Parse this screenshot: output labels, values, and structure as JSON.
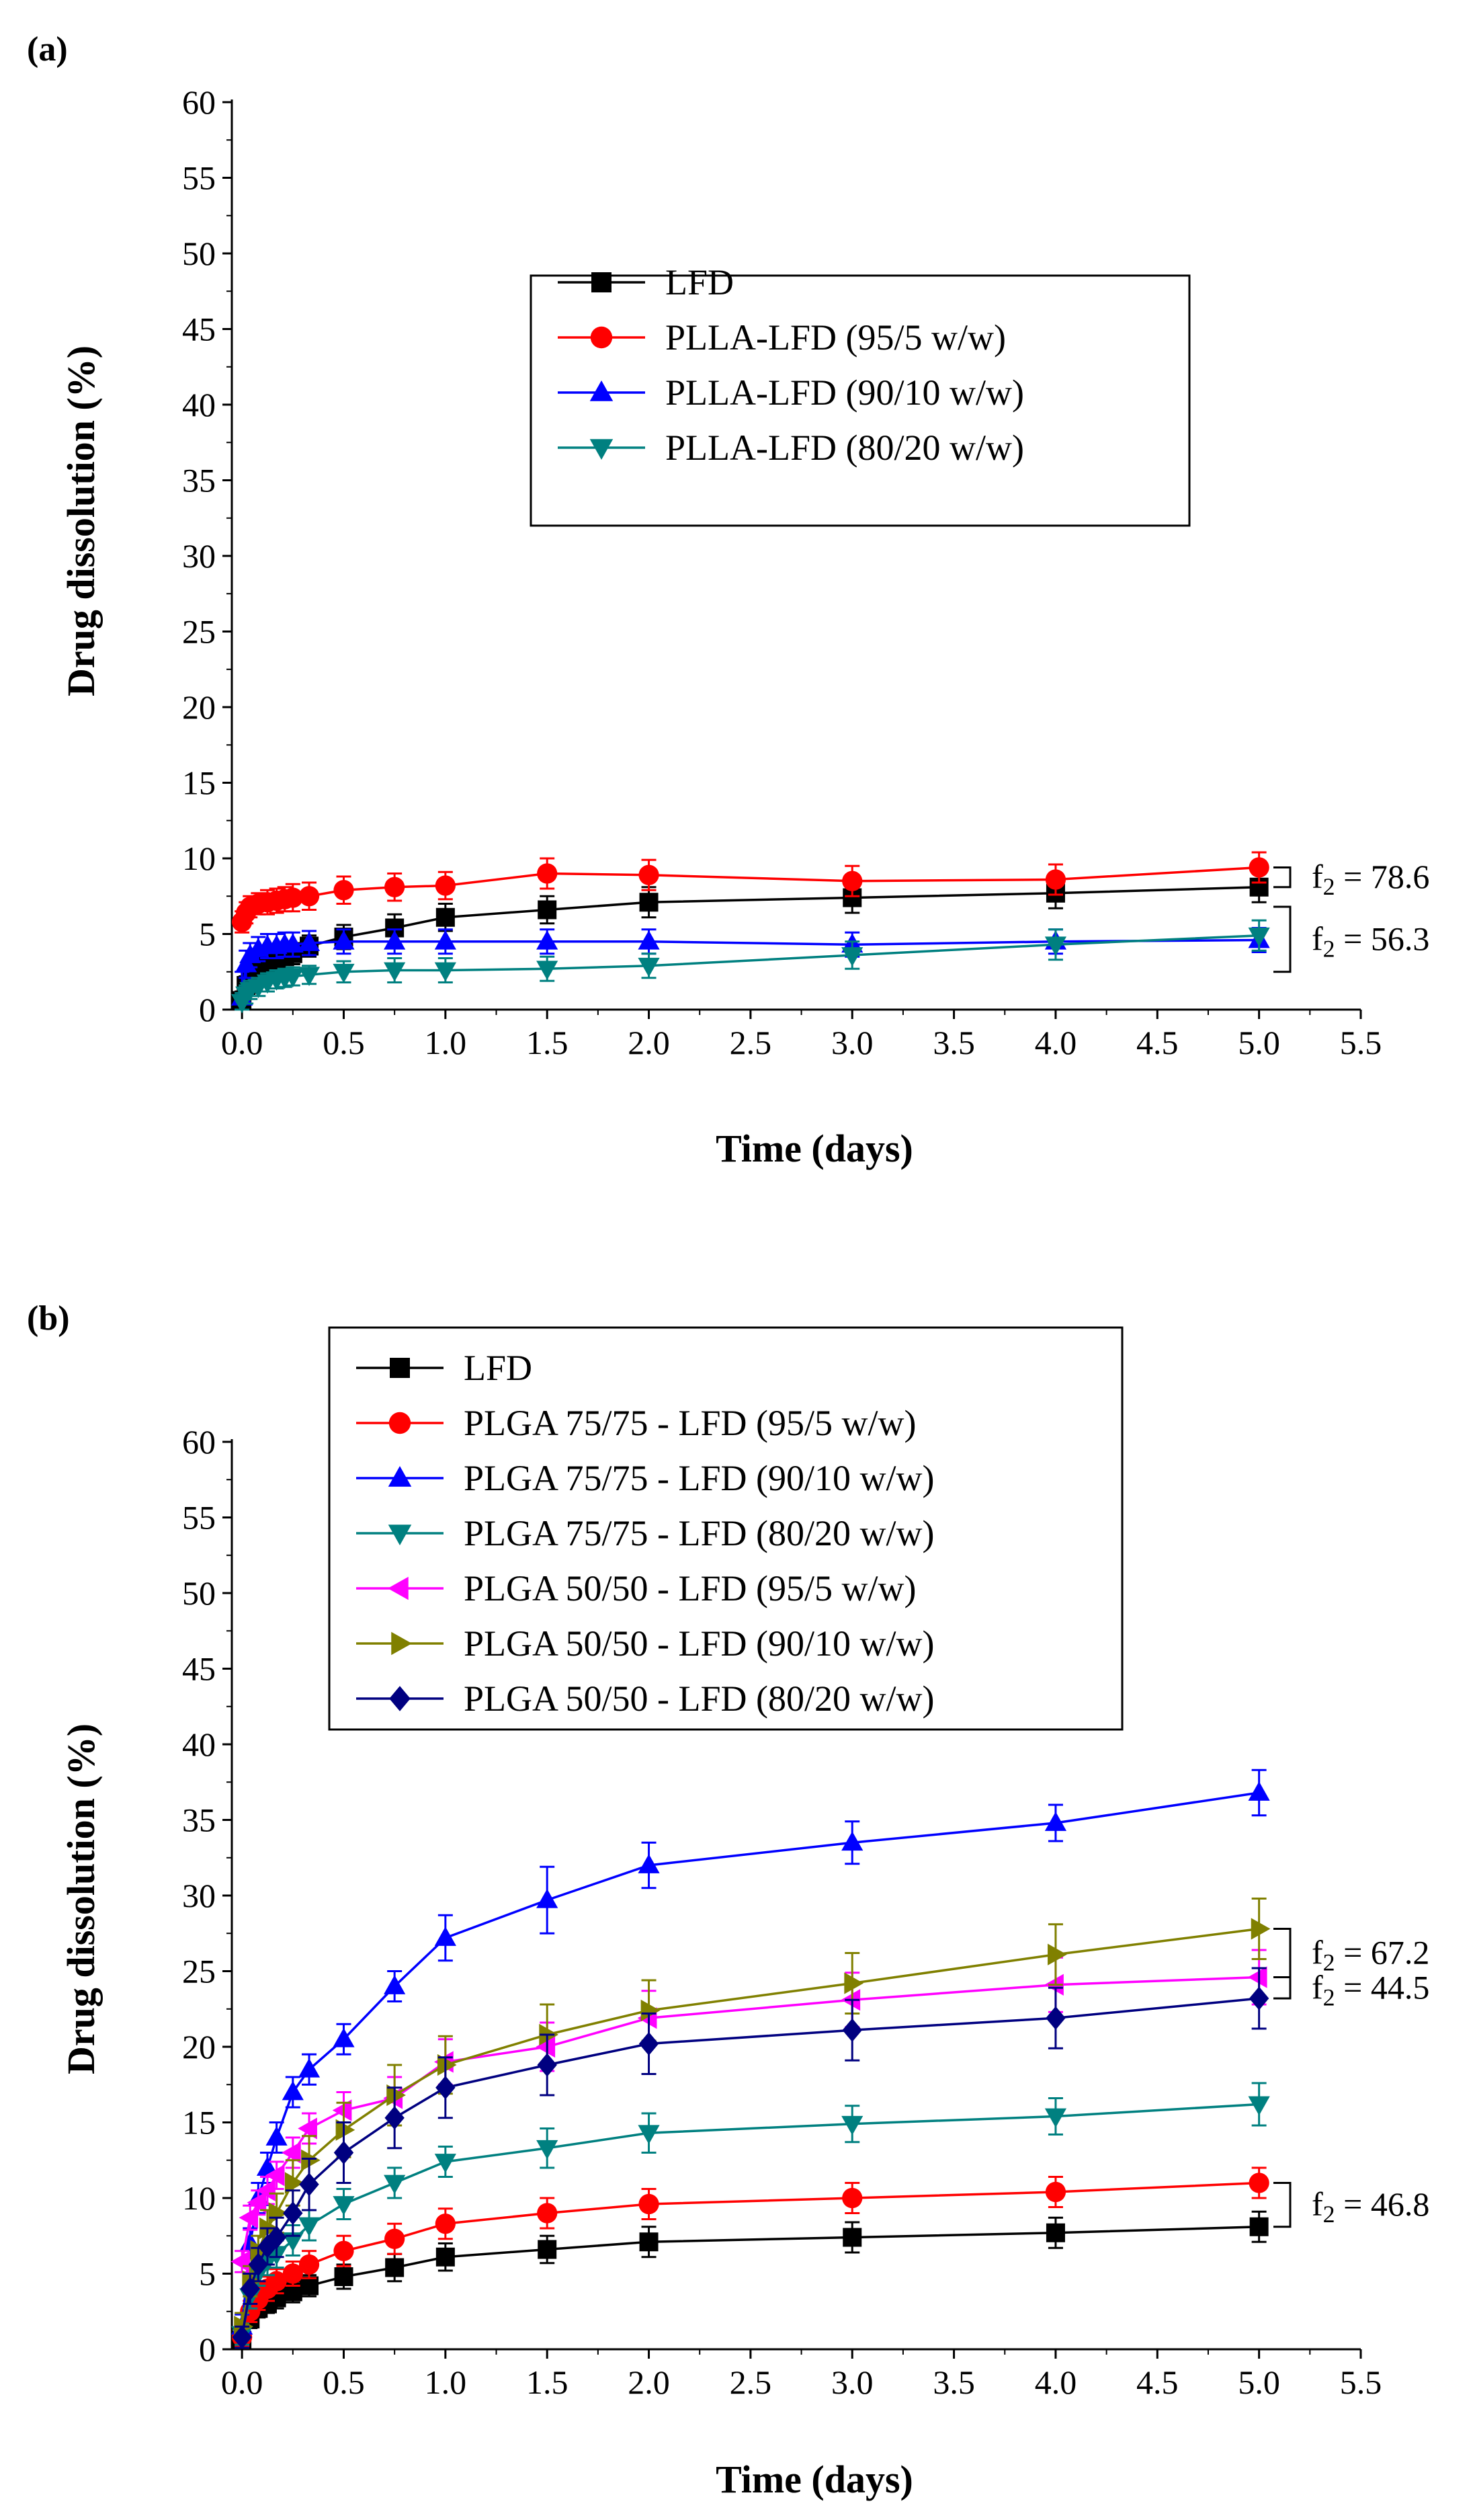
{
  "chart_data": [
    {
      "type": "line",
      "panel_label": "(a)",
      "xlabel": "Time (days)",
      "ylabel": "Drug dissolution (%)",
      "xlim": [
        -0.05,
        5.5
      ],
      "ylim": [
        0,
        60
      ],
      "xticks": [
        0.0,
        0.5,
        1.0,
        1.5,
        2.0,
        2.5,
        3.0,
        3.5,
        4.0,
        4.5,
        5.0,
        5.5
      ],
      "xtick_labels": [
        "0.0",
        "0.5",
        "1.0",
        "1.5",
        "2.0",
        "2.5",
        "3.0",
        "3.5",
        "4.0",
        "4.5",
        "5.0",
        "5.5"
      ],
      "yticks": [
        0,
        5,
        10,
        15,
        20,
        25,
        30,
        35,
        40,
        45,
        50,
        55,
        60
      ],
      "ytick_labels": [
        "0",
        "5",
        "10",
        "15",
        "20",
        "25",
        "30",
        "35",
        "40",
        "45",
        "50",
        "55",
        "60"
      ],
      "legend_position": "upper-center",
      "series": [
        {
          "name": "LFD",
          "color": "#000000",
          "marker": "square",
          "x": [
            0.0,
            0.02,
            0.04,
            0.08,
            0.125,
            0.17,
            0.21,
            0.25,
            0.33,
            0.5,
            0.75,
            1,
            1.5,
            2,
            3,
            4,
            5
          ],
          "values": [
            0.6,
            1.6,
            2.2,
            2.7,
            3.0,
            3.2,
            3.5,
            3.7,
            4.2,
            4.8,
            5.4,
            6.1,
            6.6,
            7.1,
            7.4,
            7.7,
            8.1
          ],
          "errors": [
            0.6,
            0.6,
            0.6,
            0.6,
            0.6,
            0.6,
            0.7,
            0.7,
            0.7,
            0.8,
            0.9,
            0.9,
            0.9,
            1.0,
            1.0,
            1.0,
            1.0
          ]
        },
        {
          "name": "PLLA-LFD (95/5 w/w)",
          "color": "#ff0000",
          "marker": "circle",
          "x": [
            0.0,
            0.02,
            0.04,
            0.08,
            0.125,
            0.17,
            0.21,
            0.25,
            0.33,
            0.5,
            0.75,
            1,
            1.5,
            2,
            3,
            4,
            5
          ],
          "values": [
            5.8,
            6.4,
            6.8,
            7.0,
            7.1,
            7.2,
            7.3,
            7.4,
            7.5,
            7.9,
            8.1,
            8.2,
            9.0,
            8.9,
            8.5,
            8.6,
            9.4
          ],
          "errors": [
            0.7,
            0.7,
            0.7,
            0.7,
            0.8,
            0.8,
            0.8,
            0.9,
            0.9,
            0.9,
            0.9,
            0.9,
            1.0,
            1.0,
            1.0,
            1.0,
            1.0
          ]
        },
        {
          "name": "PLLA-LFD (90/10 w/w)",
          "color": "#0000ff",
          "marker": "triangle-up",
          "x": [
            0.0,
            0.02,
            0.04,
            0.08,
            0.125,
            0.17,
            0.21,
            0.25,
            0.33,
            0.5,
            0.75,
            1,
            1.5,
            2,
            3,
            4,
            5
          ],
          "values": [
            0.8,
            3.0,
            3.6,
            4.0,
            4.2,
            4.2,
            4.3,
            4.3,
            4.4,
            4.5,
            4.5,
            4.5,
            4.5,
            4.5,
            4.3,
            4.5,
            4.6
          ],
          "errors": [
            1.7,
            0.9,
            0.8,
            0.8,
            0.8,
            0.8,
            0.8,
            0.8,
            0.8,
            0.8,
            0.8,
            0.8,
            0.8,
            0.8,
            0.8,
            0.8,
            0.8
          ]
        },
        {
          "name": "PLLA-LFD (80/20 w/w)",
          "color": "#008080",
          "marker": "triangle-down",
          "x": [
            0.0,
            0.02,
            0.04,
            0.08,
            0.125,
            0.17,
            0.21,
            0.25,
            0.33,
            0.5,
            0.75,
            1,
            1.5,
            2,
            3,
            4,
            5
          ],
          "values": [
            0.5,
            1.0,
            1.3,
            1.5,
            1.8,
            2.0,
            2.1,
            2.2,
            2.3,
            2.5,
            2.6,
            2.6,
            2.7,
            2.9,
            3.6,
            4.3,
            4.9
          ],
          "errors": [
            0.6,
            0.6,
            0.6,
            0.6,
            0.6,
            0.6,
            0.6,
            0.6,
            0.6,
            0.7,
            0.8,
            0.8,
            0.8,
            0.8,
            0.9,
            1.0,
            1.0
          ]
        }
      ],
      "annotations": [
        {
          "label": "f",
          "sub": "2",
          "text": " = 78.6",
          "bracket_y": [
            9.4,
            8.1
          ]
        },
        {
          "label": "f",
          "sub": "2",
          "text": " = 56.3",
          "bracket_y": [
            6.8,
            2.5
          ]
        }
      ]
    },
    {
      "type": "line",
      "panel_label": "(b)",
      "xlabel": "Time (days)",
      "ylabel": "Drug dissolution (%)",
      "xlim": [
        -0.05,
        5.5
      ],
      "ylim": [
        0,
        60
      ],
      "xticks": [
        0.0,
        0.5,
        1.0,
        1.5,
        2.0,
        2.5,
        3.0,
        3.5,
        4.0,
        4.5,
        5.0,
        5.5
      ],
      "xtick_labels": [
        "0.0",
        "0.5",
        "1.0",
        "1.5",
        "2.0",
        "2.5",
        "3.0",
        "3.5",
        "4.0",
        "4.5",
        "5.0",
        "5.5"
      ],
      "yticks": [
        0,
        5,
        10,
        15,
        20,
        25,
        30,
        35,
        40,
        45,
        50,
        55,
        60
      ],
      "ytick_labels": [
        "0",
        "5",
        "10",
        "15",
        "20",
        "25",
        "30",
        "35",
        "40",
        "45",
        "50",
        "55",
        "60"
      ],
      "legend_position": "upper-left",
      "series": [
        {
          "name": "LFD",
          "color": "#000000",
          "marker": "square",
          "x": [
            0.0,
            0.04,
            0.08,
            0.125,
            0.17,
            0.25,
            0.33,
            0.5,
            0.75,
            1,
            1.5,
            2,
            3,
            4,
            5
          ],
          "values": [
            0.6,
            2.0,
            2.7,
            3.0,
            3.4,
            3.8,
            4.2,
            4.8,
            5.4,
            6.1,
            6.6,
            7.1,
            7.4,
            7.7,
            8.1
          ],
          "errors": [
            0.6,
            0.6,
            0.6,
            0.6,
            0.7,
            0.7,
            0.7,
            0.8,
            0.9,
            0.9,
            0.9,
            1.0,
            1.0,
            1.0,
            1.0
          ]
        },
        {
          "name": "PLGA 75/75 - LFD (95/5 w/w)",
          "color": "#ff0000",
          "marker": "circle",
          "x": [
            0.0,
            0.04,
            0.08,
            0.125,
            0.17,
            0.25,
            0.33,
            0.5,
            0.75,
            1,
            1.5,
            2,
            3,
            4,
            5
          ],
          "values": [
            0.8,
            2.5,
            3.3,
            4.0,
            4.5,
            5.0,
            5.6,
            6.5,
            7.3,
            8.3,
            9.0,
            9.6,
            10.0,
            10.4,
            11.0
          ],
          "errors": [
            0.6,
            0.7,
            0.7,
            0.8,
            0.8,
            0.8,
            0.9,
            1.0,
            1.0,
            1.0,
            1.0,
            1.0,
            1.0,
            1.0,
            1.0
          ]
        },
        {
          "name": "PLGA 75/75 - LFD (90/10 w/w)",
          "color": "#0000ff",
          "marker": "triangle-up",
          "x": [
            0.0,
            0.04,
            0.08,
            0.125,
            0.17,
            0.25,
            0.33,
            0.5,
            0.75,
            1,
            1.5,
            2,
            3,
            4,
            5
          ],
          "values": [
            1.5,
            7.0,
            10.0,
            12.0,
            14.0,
            17.0,
            18.5,
            20.5,
            24.0,
            27.2,
            29.7,
            32.0,
            33.5,
            34.8,
            36.8
          ],
          "errors": [
            0.8,
            1.0,
            1.0,
            1.0,
            1.0,
            1.0,
            1.0,
            1.0,
            1.0,
            1.5,
            2.2,
            1.5,
            1.4,
            1.2,
            1.5
          ]
        },
        {
          "name": "PLGA 75/75 - LFD (80/20 w/w)",
          "color": "#008080",
          "marker": "triangle-down",
          "x": [
            0.0,
            0.04,
            0.08,
            0.125,
            0.17,
            0.25,
            0.33,
            0.5,
            0.75,
            1,
            1.5,
            2,
            3,
            4,
            5
          ],
          "values": [
            1.0,
            3.5,
            5.0,
            5.8,
            6.3,
            7.2,
            8.2,
            9.6,
            11.0,
            12.4,
            13.3,
            14.3,
            14.9,
            15.4,
            16.2
          ],
          "errors": [
            0.7,
            0.8,
            0.8,
            0.9,
            0.9,
            1.0,
            1.0,
            1.0,
            1.0,
            1.0,
            1.3,
            1.3,
            1.2,
            1.2,
            1.4
          ]
        },
        {
          "name": "PLGA 50/50 - LFD (95/5 w/w)",
          "color": "#ff00ff",
          "marker": "triangle-left",
          "x": [
            0.0,
            0.04,
            0.08,
            0.125,
            0.17,
            0.25,
            0.33,
            0.5,
            0.75,
            1,
            1.5,
            2,
            3,
            4,
            5
          ],
          "values": [
            5.8,
            8.7,
            9.7,
            10.5,
            11.5,
            13.0,
            14.6,
            15.8,
            16.6,
            19.0,
            20.0,
            21.9,
            23.1,
            24.1,
            24.6
          ],
          "errors": [
            0.7,
            0.8,
            0.8,
            0.9,
            0.9,
            1.0,
            1.0,
            1.2,
            1.4,
            1.5,
            1.6,
            1.8,
            1.8,
            1.8,
            1.8
          ]
        },
        {
          "name": "PLGA 50/50 - LFD (90/10 w/w)",
          "color": "#808000",
          "marker": "triangle-right",
          "x": [
            0.0,
            0.04,
            0.08,
            0.125,
            0.17,
            0.25,
            0.33,
            0.5,
            0.75,
            1,
            1.5,
            2,
            3,
            4,
            5
          ],
          "values": [
            1.5,
            4.5,
            6.5,
            8.0,
            9.0,
            11.0,
            12.5,
            14.5,
            16.8,
            18.8,
            20.8,
            22.4,
            24.2,
            26.1,
            27.8
          ],
          "errors": [
            0.9,
            1.0,
            1.0,
            1.2,
            1.3,
            1.5,
            1.6,
            1.8,
            2.0,
            1.9,
            2.0,
            2.0,
            2.0,
            2.0,
            2.0
          ]
        },
        {
          "name": "PLGA 50/50 - LFD (80/20 w/w)",
          "color": "#000080",
          "marker": "diamond",
          "x": [
            0.0,
            0.04,
            0.08,
            0.125,
            0.17,
            0.25,
            0.33,
            0.5,
            0.75,
            1,
            1.5,
            2,
            3,
            4,
            5
          ],
          "values": [
            0.8,
            4.0,
            5.6,
            6.8,
            7.4,
            9.0,
            10.9,
            13.0,
            15.3,
            17.3,
            18.8,
            20.2,
            21.1,
            21.9,
            23.2
          ],
          "errors": [
            0.7,
            1.0,
            1.1,
            1.2,
            1.3,
            1.5,
            1.7,
            2.0,
            2.0,
            2.0,
            2.0,
            2.0,
            2.0,
            2.0,
            2.0
          ]
        }
      ],
      "annotations": [
        {
          "label": "f",
          "sub": "2",
          "text": " = 67.2",
          "bracket_y": [
            27.8,
            24.6
          ]
        },
        {
          "label": "f",
          "sub": "2",
          "text": " = 44.5",
          "bracket_y": [
            24.6,
            23.2
          ]
        },
        {
          "label": "f",
          "sub": "2",
          "text": " = 46.8",
          "bracket_y": [
            11.0,
            8.1
          ]
        }
      ]
    }
  ]
}
